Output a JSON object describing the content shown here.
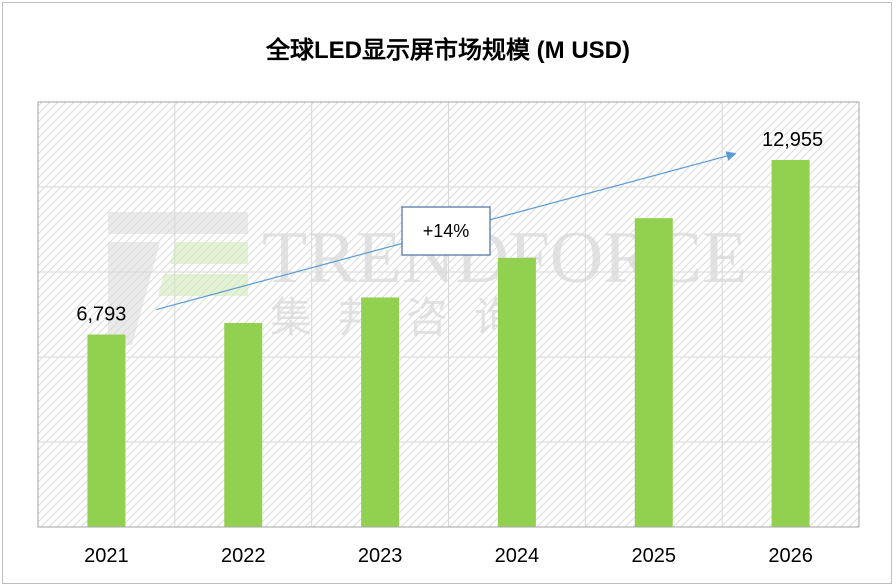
{
  "title": "全球LED显示屏市场规模 (M USD)",
  "watermark": {
    "name": "TRENDFORCE",
    "name_cn": "集邦咨询",
    "icon": "trendforce-logo-icon"
  },
  "colors": {
    "bar": "#92d050",
    "arrow": "#5b9bd5",
    "grid": "#d9d9d9",
    "plot_border": "#a6a6a6"
  },
  "chart_data": {
    "type": "bar",
    "title": "全球LED显示屏市场规模 (M USD)",
    "xlabel": "",
    "ylabel": "",
    "categories": [
      "2021",
      "2022",
      "2023",
      "2024",
      "2025",
      "2026"
    ],
    "series": [
      {
        "values": [
          6793,
          7200,
          8100,
          9500,
          10900,
          12955
        ]
      }
    ],
    "data_labels": [
      {
        "category": "2021",
        "text": "6,793"
      },
      {
        "category": "2026",
        "text": "12,955"
      }
    ],
    "annotations": [
      {
        "type": "growth-arrow",
        "text": "+14%",
        "from": "2021",
        "to": "2026"
      }
    ],
    "ylim": [
      0,
      15000
    ],
    "grid": true,
    "legend": "none"
  }
}
